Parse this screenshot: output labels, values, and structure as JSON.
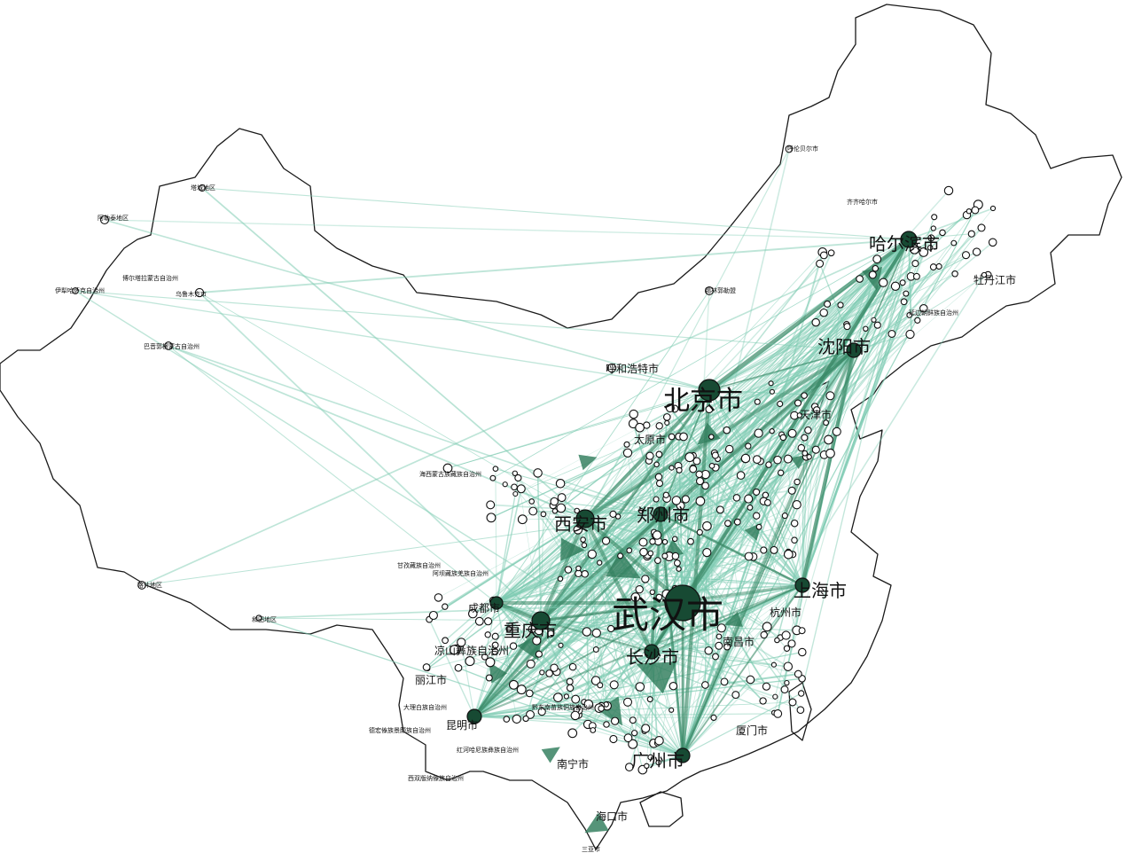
{
  "colors": {
    "edge_light": "#7ecbb2",
    "edge_dark": "#3b8a68",
    "arrow": "#2f7d5c",
    "node_hub": "#174a33",
    "outline": "#1a1a1a",
    "background": "#ffffff"
  },
  "cities": {
    "wuhan": "武汉市",
    "beijing": "北京市",
    "chongqing": "重庆市",
    "xian": "西安市",
    "zhengzhou": "郑州市",
    "harbin": "哈尔滨市",
    "shenyang": "沈阳市",
    "shanghai": "上海市",
    "chengdu": "成都市",
    "changsha": "长沙市",
    "kunming": "昆明市",
    "guangzhou": "广州市",
    "nanning": "南宁市",
    "hangzhou": "杭州市",
    "xiamen": "厦门市",
    "mudanjiang": "牡丹江市",
    "taiyuan": "太原市",
    "hohhot": "呼和浩特市",
    "tianjin": "天津市",
    "nanchang": "南昌市",
    "haikou": "海口市",
    "lijiang": "丽江市",
    "dali": "大理白族自治州",
    "liangshan": "凉山彝族自治州",
    "qiqihar": "齐齐哈尔市",
    "urumqi": "乌鲁木齐市",
    "kashgar": "喀什地区",
    "hotan": "和田地区",
    "bortala": "博尔塔拉蒙古自治州",
    "yili": "伊犁哈萨克自治州",
    "bayingolin": "巴音郭楞蒙古自治州",
    "aletai": "阿勒泰地区",
    "altay_city": "塔城地区",
    "ganzi": "甘孜藏族自治州",
    "aba": "阿坝藏族羌族自治州",
    "hulunbuir": "呼伦贝尔市",
    "xilingol": "锡林郭勒盟",
    "haixi": "海西蒙古族藏族自治州",
    "xishuangbanna": "西双版纳傣族自治州",
    "dehong": "德宏傣族景颇族自治州",
    "honghe": "红河哈尼族彝族自治州",
    "qiandongnan": "黔东南苗族侗族自治州",
    "yanbian": "延边朝鲜族自治州",
    "sanya": "三亚市"
  }
}
